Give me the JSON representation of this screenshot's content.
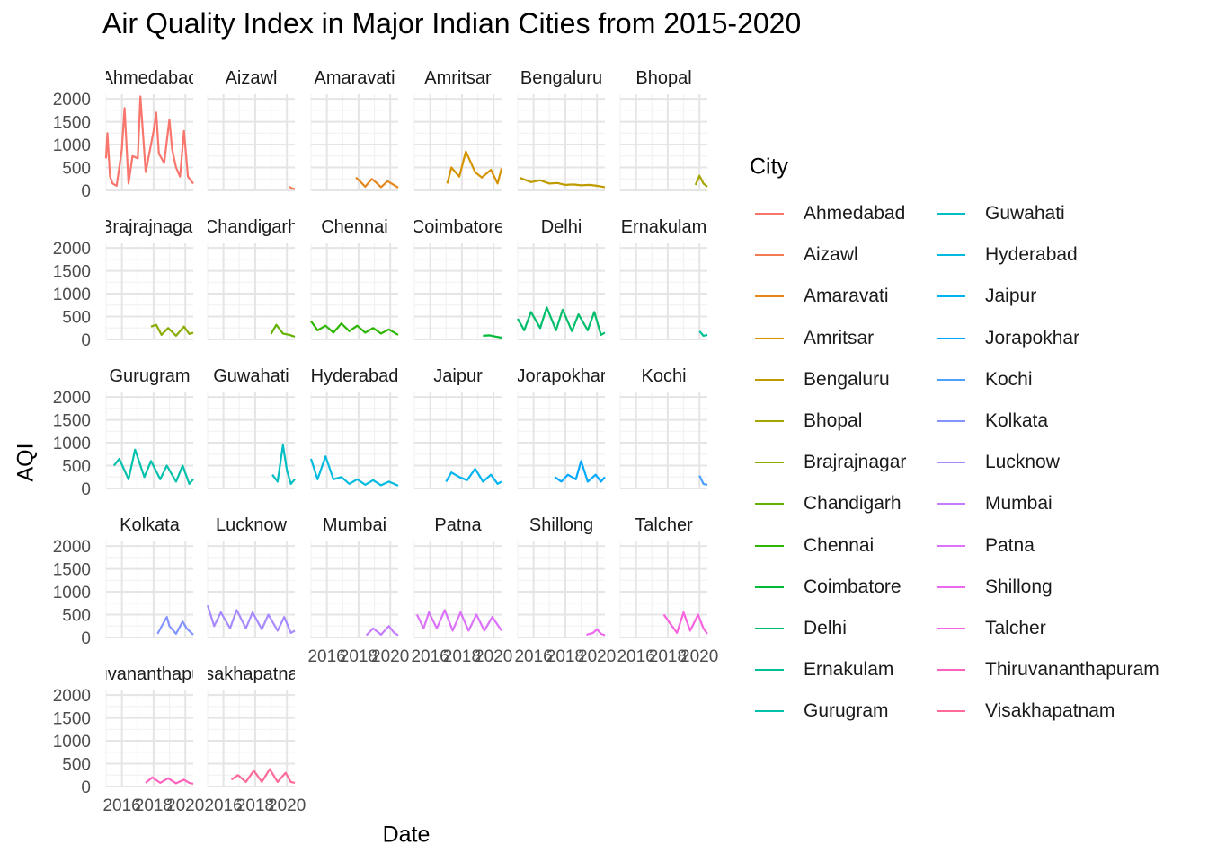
{
  "chart_data": {
    "type": "line",
    "title": "Air Quality Index in Major Indian Cities from 2015-2020",
    "xlabel": "Date",
    "ylabel": "AQI",
    "legend_title": "City",
    "legend_position": "right",
    "grid": true,
    "facet": "wrap by City, 6 columns, shared axes",
    "x_tick_labels": [
      "2016",
      "2018",
      "2020"
    ],
    "xlim": [
      "2015-01-01",
      "2020-07-01"
    ],
    "ylim": [
      0,
      2100
    ],
    "y_ticks": [
      0,
      500,
      1000,
      1500,
      2000
    ],
    "y_tick_labels": [
      "0",
      "500",
      "1000",
      "1500",
      "2000"
    ],
    "series": [
      {
        "name": "Ahmedabad",
        "color": "#F8766D",
        "strip_label": "Ahmedabad",
        "x": [
          "2015-01",
          "2015-02",
          "2015-04",
          "2015-06",
          "2015-09",
          "2016-01",
          "2016-03",
          "2016-06",
          "2016-09",
          "2017-01",
          "2017-03",
          "2017-07",
          "2018-01",
          "2018-03",
          "2018-05",
          "2018-09",
          "2019-01",
          "2019-03",
          "2019-06",
          "2019-09",
          "2019-12",
          "2020-03",
          "2020-07"
        ],
        "values": [
          700,
          1250,
          300,
          150,
          100,
          900,
          1800,
          150,
          750,
          700,
          2050,
          400,
          1300,
          1700,
          800,
          600,
          1550,
          900,
          500,
          300,
          1300,
          300,
          150
        ]
      },
      {
        "name": "Aizawl",
        "color": "#F07C50",
        "strip_label": "Aizawl",
        "x": [
          "2020-03",
          "2020-05",
          "2020-07"
        ],
        "values": [
          80,
          40,
          30
        ]
      },
      {
        "name": "Amaravati",
        "color": "#E5861C",
        "strip_label": "Amaravati",
        "x": [
          "2017-11",
          "2018-02",
          "2018-06",
          "2018-11",
          "2019-02",
          "2019-06",
          "2019-11",
          "2020-02",
          "2020-07"
        ],
        "values": [
          280,
          200,
          80,
          250,
          180,
          70,
          200,
          150,
          60
        ]
      },
      {
        "name": "Amritsar",
        "color": "#D59300",
        "strip_label": "Amritsar",
        "x": [
          "2017-02",
          "2017-05",
          "2017-11",
          "2018-04",
          "2018-11",
          "2019-04",
          "2019-11",
          "2020-04",
          "2020-07"
        ],
        "values": [
          150,
          500,
          300,
          850,
          400,
          280,
          450,
          150,
          480
        ]
      },
      {
        "name": "Bengaluru",
        "color": "#BF9B00",
        "strip_label": "Bengaluru",
        "x": [
          "2015-03",
          "2015-11",
          "2016-06",
          "2017-01",
          "2017-07",
          "2018-01",
          "2018-07",
          "2019-01",
          "2019-07",
          "2020-01",
          "2020-07"
        ],
        "values": [
          270,
          180,
          220,
          150,
          160,
          120,
          130,
          110,
          120,
          100,
          70
        ]
      },
      {
        "name": "Bhopal",
        "color": "#A6A400",
        "strip_label": "Bhopal",
        "x": [
          "2019-10",
          "2020-01",
          "2020-04",
          "2020-07"
        ],
        "values": [
          120,
          320,
          150,
          80
        ]
      },
      {
        "name": "Brajrajnagar",
        "color": "#8AAB00",
        "strip_label": "Brajrajnagar",
        "x": [
          "2017-11",
          "2018-03",
          "2018-07",
          "2018-12",
          "2019-06",
          "2019-12",
          "2020-04",
          "2020-07"
        ],
        "values": [
          280,
          320,
          100,
          250,
          80,
          280,
          120,
          150
        ]
      },
      {
        "name": "Chandigarh",
        "color": "#64B200",
        "strip_label": "Chandigarh",
        "x": [
          "2019-01",
          "2019-05",
          "2019-10",
          "2020-03",
          "2020-07"
        ],
        "values": [
          120,
          320,
          130,
          100,
          60
        ]
      },
      {
        "name": "Chennai",
        "color": "#2CB600",
        "strip_label": "Chennai",
        "x": [
          "2015-01",
          "2015-06",
          "2015-12",
          "2016-06",
          "2016-12",
          "2017-06",
          "2017-12",
          "2018-06",
          "2018-12",
          "2019-06",
          "2019-12",
          "2020-07"
        ],
        "values": [
          400,
          200,
          300,
          150,
          350,
          180,
          300,
          150,
          250,
          130,
          220,
          100
        ]
      },
      {
        "name": "Coimbatore",
        "color": "#00BA38",
        "strip_label": "Coimbatore",
        "x": [
          "2019-05",
          "2019-10",
          "2020-03",
          "2020-07"
        ],
        "values": [
          80,
          90,
          60,
          40
        ]
      },
      {
        "name": "Delhi",
        "color": "#00BE6C",
        "strip_label": "Delhi",
        "x": [
          "2015-01",
          "2015-06",
          "2015-11",
          "2016-06",
          "2016-11",
          "2017-06",
          "2017-11",
          "2018-06",
          "2018-11",
          "2019-06",
          "2019-11",
          "2020-04",
          "2020-07"
        ],
        "values": [
          450,
          200,
          600,
          250,
          700,
          200,
          650,
          180,
          550,
          200,
          600,
          100,
          150
        ]
      },
      {
        "name": "Ernakulam",
        "color": "#00C097",
        "strip_label": "Ernakulam",
        "x": [
          "2020-01",
          "2020-04",
          "2020-07"
        ],
        "values": [
          180,
          80,
          100
        ]
      },
      {
        "name": "Gurugram",
        "color": "#00C1AB",
        "strip_label": "Gurugram",
        "x": [
          "2015-07",
          "2015-11",
          "2016-06",
          "2016-11",
          "2017-06",
          "2017-11",
          "2018-06",
          "2018-11",
          "2019-06",
          "2019-11",
          "2020-04",
          "2020-07"
        ],
        "values": [
          500,
          650,
          200,
          850,
          250,
          600,
          200,
          500,
          150,
          500,
          100,
          200
        ]
      },
      {
        "name": "Guwahati",
        "color": "#00BFC4",
        "strip_label": "Guwahati",
        "x": [
          "2019-02",
          "2019-06",
          "2019-10",
          "2020-01",
          "2020-04",
          "2020-07"
        ],
        "values": [
          300,
          150,
          950,
          400,
          100,
          200
        ]
      },
      {
        "name": "Hyderabad",
        "color": "#00BAE0",
        "strip_label": "Hyderabad",
        "x": [
          "2015-01",
          "2015-06",
          "2015-12",
          "2016-06",
          "2016-12",
          "2017-06",
          "2017-12",
          "2018-06",
          "2018-12",
          "2019-06",
          "2019-12",
          "2020-07"
        ],
        "values": [
          650,
          200,
          700,
          200,
          250,
          100,
          200,
          80,
          180,
          70,
          150,
          60
        ]
      },
      {
        "name": "Jaipur",
        "color": "#00B4EF",
        "strip_label": "Jaipur",
        "x": [
          "2017-01",
          "2017-05",
          "2017-11",
          "2018-05",
          "2018-11",
          "2019-05",
          "2019-11",
          "2020-04",
          "2020-07"
        ],
        "values": [
          150,
          350,
          250,
          180,
          430,
          150,
          300,
          100,
          150
        ]
      },
      {
        "name": "Jorapokhar",
        "color": "#00A9FF",
        "strip_label": "Jorapokhar",
        "x": [
          "2017-05",
          "2017-10",
          "2018-03",
          "2018-09",
          "2019-01",
          "2019-06",
          "2019-12",
          "2020-04",
          "2020-07"
        ],
        "values": [
          250,
          150,
          300,
          200,
          600,
          150,
          300,
          150,
          250
        ]
      },
      {
        "name": "Kochi",
        "color": "#4B9FFF",
        "strip_label": "Kochi",
        "x": [
          "2020-01",
          "2020-04",
          "2020-07"
        ],
        "values": [
          280,
          100,
          80
        ]
      },
      {
        "name": "Kolkata",
        "color": "#8494FF",
        "strip_label": "Kolkata",
        "x": [
          "2018-04",
          "2018-11",
          "2019-01",
          "2019-06",
          "2019-11",
          "2020-02",
          "2020-07"
        ],
        "values": [
          80,
          450,
          250,
          80,
          350,
          200,
          60
        ]
      },
      {
        "name": "Lucknow",
        "color": "#A88AFF",
        "strip_label": "Lucknow",
        "x": [
          "2015-01",
          "2015-06",
          "2015-11",
          "2016-06",
          "2016-11",
          "2017-06",
          "2017-11",
          "2018-06",
          "2018-11",
          "2019-06",
          "2019-11",
          "2020-04",
          "2020-07"
        ],
        "values": [
          700,
          250,
          550,
          200,
          600,
          200,
          550,
          180,
          500,
          150,
          450,
          100,
          150
        ]
      },
      {
        "name": "Mumbai",
        "color": "#C77CFF",
        "strip_label": "Mumbai",
        "x": [
          "2018-07",
          "2018-12",
          "2019-06",
          "2019-12",
          "2020-04",
          "2020-07"
        ],
        "values": [
          50,
          200,
          60,
          250,
          100,
          50
        ]
      },
      {
        "name": "Patna",
        "color": "#DC71FA",
        "strip_label": "Patna",
        "x": [
          "2015-03",
          "2015-08",
          "2015-12",
          "2016-06",
          "2016-12",
          "2017-06",
          "2017-12",
          "2018-06",
          "2018-12",
          "2019-06",
          "2019-12",
          "2020-07"
        ],
        "values": [
          500,
          200,
          550,
          200,
          600,
          150,
          550,
          150,
          500,
          150,
          450,
          150
        ]
      },
      {
        "name": "Shillong",
        "color": "#EC69EF",
        "strip_label": "Shillong",
        "x": [
          "2019-05",
          "2019-10",
          "2020-01",
          "2020-04",
          "2020-07"
        ],
        "values": [
          60,
          100,
          180,
          80,
          50
        ]
      },
      {
        "name": "Talcher",
        "color": "#F863DF",
        "strip_label": "Talcher",
        "x": [
          "2017-10",
          "2018-03",
          "2018-08",
          "2019-01",
          "2019-06",
          "2019-12",
          "2020-04",
          "2020-07"
        ],
        "values": [
          500,
          300,
          100,
          550,
          150,
          500,
          200,
          80
        ]
      },
      {
        "name": "Thiruvananthapuram",
        "color": "#FF62BC",
        "strip_label": "Thiruvananthapuram",
        "x": [
          "2017-07",
          "2017-12",
          "2018-06",
          "2018-12",
          "2019-06",
          "2019-12",
          "2020-04",
          "2020-07"
        ],
        "values": [
          80,
          200,
          80,
          180,
          70,
          150,
          80,
          60
        ]
      },
      {
        "name": "Visakhapatnam",
        "color": "#FF6A98",
        "strip_label": "Visakhapatnam",
        "x": [
          "2016-07",
          "2016-12",
          "2017-06",
          "2017-12",
          "2018-06",
          "2018-12",
          "2019-06",
          "2019-12",
          "2020-04",
          "2020-07"
        ],
        "values": [
          150,
          250,
          100,
          350,
          100,
          380,
          100,
          300,
          100,
          80
        ]
      }
    ]
  }
}
